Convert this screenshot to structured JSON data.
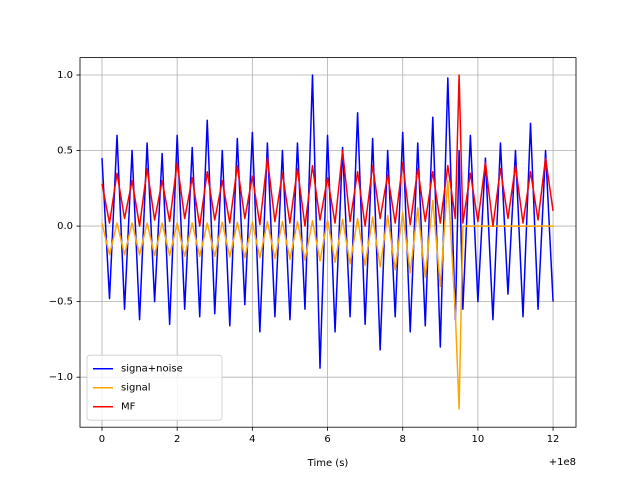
{
  "chart_data": {
    "type": "line",
    "xlabel": "Time (s)",
    "x_offset_label": "+1e8",
    "x": [
      0,
      0.2,
      0.4,
      0.6,
      0.8,
      1,
      1.2,
      1.4,
      1.6,
      1.8,
      2,
      2.2,
      2.4,
      2.6,
      2.8,
      3,
      3.2,
      3.4,
      3.6,
      3.8,
      4,
      4.2,
      4.4,
      4.6,
      4.8,
      5,
      5.2,
      5.4,
      5.6,
      5.8,
      6,
      6.2,
      6.4,
      6.6,
      6.8,
      7,
      7.2,
      7.4,
      7.6,
      7.8,
      8,
      8.2,
      8.4,
      8.6,
      8.8,
      9,
      9.2,
      9.4,
      9.5,
      9.6,
      9.8,
      10,
      10.2,
      10.4,
      10.6,
      10.8,
      11,
      11.2,
      11.4,
      11.6,
      11.8,
      12
    ],
    "series": [
      {
        "name": "signa+noise",
        "color": "#0000ff",
        "values": [
          0.45,
          -0.48,
          0.6,
          -0.55,
          0.5,
          -0.62,
          0.55,
          -0.5,
          0.48,
          -0.65,
          0.6,
          -0.55,
          0.52,
          -0.6,
          0.7,
          -0.58,
          0.5,
          -0.66,
          0.58,
          -0.52,
          0.62,
          -0.7,
          0.55,
          -0.6,
          0.5,
          -0.62,
          0.55,
          -0.55,
          1.0,
          -0.94,
          0.6,
          -0.7,
          0.52,
          -0.6,
          0.75,
          -0.65,
          0.58,
          -0.82,
          0.5,
          -0.6,
          0.62,
          -0.7,
          0.55,
          -0.66,
          0.72,
          -0.8,
          0.98,
          -0.62,
          0.5,
          -0.55,
          0.6,
          -0.5,
          0.45,
          -0.62,
          0.55,
          -0.45,
          0.5,
          -0.6,
          0.68,
          -0.55,
          0.5,
          -0.5
        ]
      },
      {
        "name": "signal",
        "color": "#ffa500",
        "values": [
          0.02,
          -0.19,
          0.02,
          -0.19,
          0.02,
          -0.19,
          0.02,
          -0.195,
          0.02,
          -0.195,
          0.02,
          -0.2,
          0.02,
          -0.2,
          0.02,
          -0.2,
          0.025,
          -0.205,
          0.025,
          -0.21,
          0.025,
          -0.21,
          0.03,
          -0.215,
          0.03,
          -0.22,
          0.03,
          -0.225,
          0.035,
          -0.23,
          0.04,
          -0.24,
          0.045,
          -0.25,
          0.05,
          -0.26,
          0.06,
          -0.27,
          0.07,
          -0.29,
          0.09,
          -0.31,
          0.12,
          -0.34,
          0.17,
          -0.4,
          0.3,
          -0.58,
          -1.21,
          0,
          0,
          0,
          0,
          0,
          0,
          0,
          0,
          0,
          0,
          0,
          0,
          0
        ]
      },
      {
        "name": "MF",
        "color": "#ff0000",
        "values": [
          0.28,
          0.02,
          0.35,
          0.05,
          0.3,
          0.0,
          0.38,
          0.04,
          0.3,
          0.03,
          0.42,
          0.05,
          0.32,
          0.0,
          0.36,
          0.04,
          0.3,
          0.02,
          0.4,
          0.05,
          0.33,
          0.01,
          0.45,
          0.03,
          0.35,
          0.02,
          0.38,
          0.0,
          0.4,
          0.04,
          0.32,
          0.02,
          0.5,
          0.03,
          0.36,
          0.0,
          0.4,
          0.05,
          0.34,
          0.02,
          0.42,
          0.01,
          0.38,
          0.03,
          0.36,
          0.02,
          0.4,
          0.05,
          1.0,
          0.02,
          0.35,
          0.03,
          0.42,
          0.0,
          0.38,
          0.05,
          0.4,
          0.02,
          0.36,
          0.04,
          0.45,
          0.1
        ]
      }
    ],
    "xlim": [
      -0.585,
      12.61
    ],
    "ylim": [
      -1.331,
      1.115
    ],
    "xticks": [
      0,
      2,
      4,
      6,
      8,
      10,
      12
    ],
    "yticks": [
      {
        "value": -1.0,
        "label": "−1.0"
      },
      {
        "value": -0.5,
        "label": "−0.5"
      },
      {
        "value": 0.0,
        "label": "0.0"
      },
      {
        "value": 0.5,
        "label": "0.5"
      },
      {
        "value": 1.0,
        "label": "1.0"
      }
    ],
    "grid": true,
    "legend": "lower left"
  }
}
